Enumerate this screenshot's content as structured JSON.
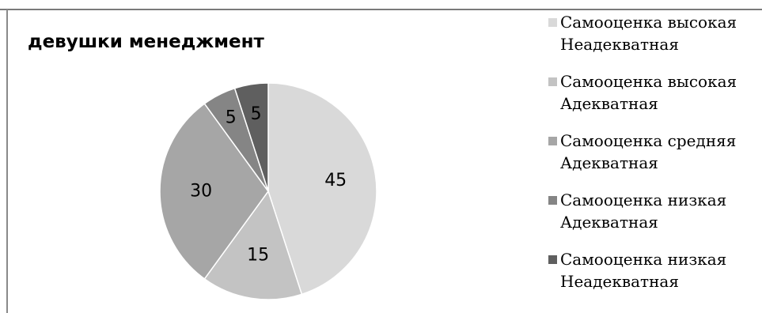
{
  "chart_data": {
    "type": "pie",
    "title": "девушки менеджмент",
    "legend_position": "right",
    "slices": [
      {
        "label_lines": [
          "Самооценка высокая",
          "Неадекватная"
        ],
        "value": 45,
        "color": "#d9d9d9"
      },
      {
        "label_lines": [
          "Самооценка высокая",
          "Адекватная"
        ],
        "value": 15,
        "color": "#c3c3c3"
      },
      {
        "label_lines": [
          "Самооценка средняя",
          "Адекватная"
        ],
        "value": 30,
        "color": "#a6a6a6"
      },
      {
        "label_lines": [
          "Самооценка низкая",
          "Адекватная"
        ],
        "value": 5,
        "color": "#858585"
      },
      {
        "label_lines": [
          "Самооценка низкая",
          "Неадекватная"
        ],
        "value": 5,
        "color": "#5f5f5f"
      }
    ]
  }
}
